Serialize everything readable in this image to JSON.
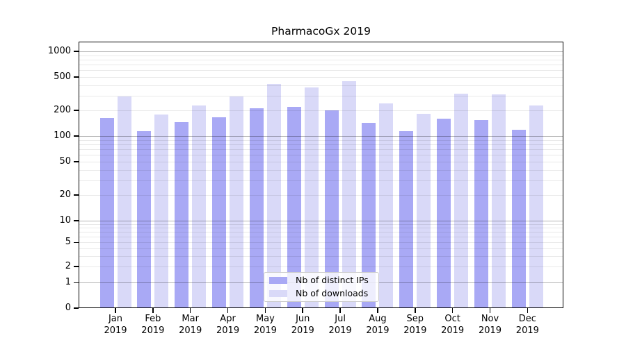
{
  "chart_data": {
    "type": "bar",
    "title": "PharmacoGx 2019",
    "months": [
      "Jan",
      "Feb",
      "Mar",
      "Apr",
      "May",
      "Jun",
      "Jul",
      "Aug",
      "Sep",
      "Oct",
      "Nov",
      "Dec"
    ],
    "year_label": "2019",
    "series": [
      {
        "name": "Nb of distinct IPs",
        "color": "#a9a9f5",
        "values": [
          163,
          114,
          146,
          166,
          213,
          220,
          200,
          142,
          114,
          159,
          154,
          119
        ]
      },
      {
        "name": "Nb of downloads",
        "color": "#d9d9f8",
        "values": [
          295,
          181,
          230,
          292,
          410,
          376,
          446,
          241,
          183,
          318,
          310,
          228
        ]
      }
    ],
    "yticks": [
      0,
      1,
      2,
      5,
      10,
      20,
      50,
      100,
      200,
      500,
      1000
    ],
    "yscale": "log",
    "ylim": [
      0,
      1300
    ],
    "grid": true,
    "legend_position": "lower-center-inside"
  },
  "colors": {
    "axis": "#000000",
    "major_grid": "#b2b2b2",
    "minor_grid": "#e8e8e8",
    "legend_border": "#cccccc"
  }
}
